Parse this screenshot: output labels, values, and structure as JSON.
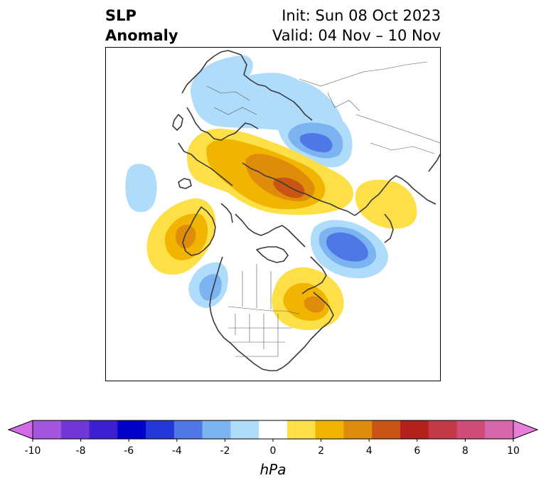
{
  "title": {
    "left_line1": "SLP",
    "left_line2": "Anomaly",
    "right_line1": "Init: Sun 08 Oct 2023",
    "right_line2": "Valid: 04 Nov – 10 Nov"
  },
  "colorbar": {
    "unit": "hPa",
    "ticks": [
      "-10",
      "-8",
      "-6",
      "-4",
      "-2",
      "0",
      "2",
      "4",
      "6",
      "8",
      "10"
    ],
    "colors": [
      "#d36ae6",
      "#a556e0",
      "#7237d9",
      "#3e1ed4",
      "#0000cc",
      "#2238d8",
      "#4f78e6",
      "#7cb4f2",
      "#aedcfa",
      "#ffffff",
      "#fde047",
      "#f1b400",
      "#df8c0a",
      "#c95514",
      "#b5221d",
      "#c43848",
      "#d04d7a",
      "#d866ab",
      "#e87ed9"
    ]
  },
  "map": {
    "region": "Northern Hemisphere polar stereographic",
    "anomaly_centers": [
      {
        "sign": "negative",
        "location": "Scandinavia / northern Europe",
        "peak_hpa": -2
      },
      {
        "sign": "negative",
        "location": "western Siberia / Ural region",
        "peak_hpa": -4
      },
      {
        "sign": "positive",
        "location": "north Atlantic / Europe",
        "peak_hpa": 4
      },
      {
        "sign": "positive",
        "location": "central Siberia / Arctic coast",
        "peak_hpa": 6
      },
      {
        "sign": "positive",
        "location": "eastern Asia",
        "peak_hpa": 2
      },
      {
        "sign": "negative",
        "location": "Bering Sea / Alaska",
        "peak_hpa": -4
      },
      {
        "sign": "positive",
        "location": "Greenland / Labrador Sea",
        "peak_hpa": 4
      },
      {
        "sign": "negative",
        "location": "off western North America",
        "peak_hpa": -4
      },
      {
        "sign": "positive",
        "location": "eastern Canada / Great Lakes",
        "peak_hpa": 4
      },
      {
        "sign": "negative",
        "location": "central Atlantic",
        "peak_hpa": -2
      }
    ]
  }
}
